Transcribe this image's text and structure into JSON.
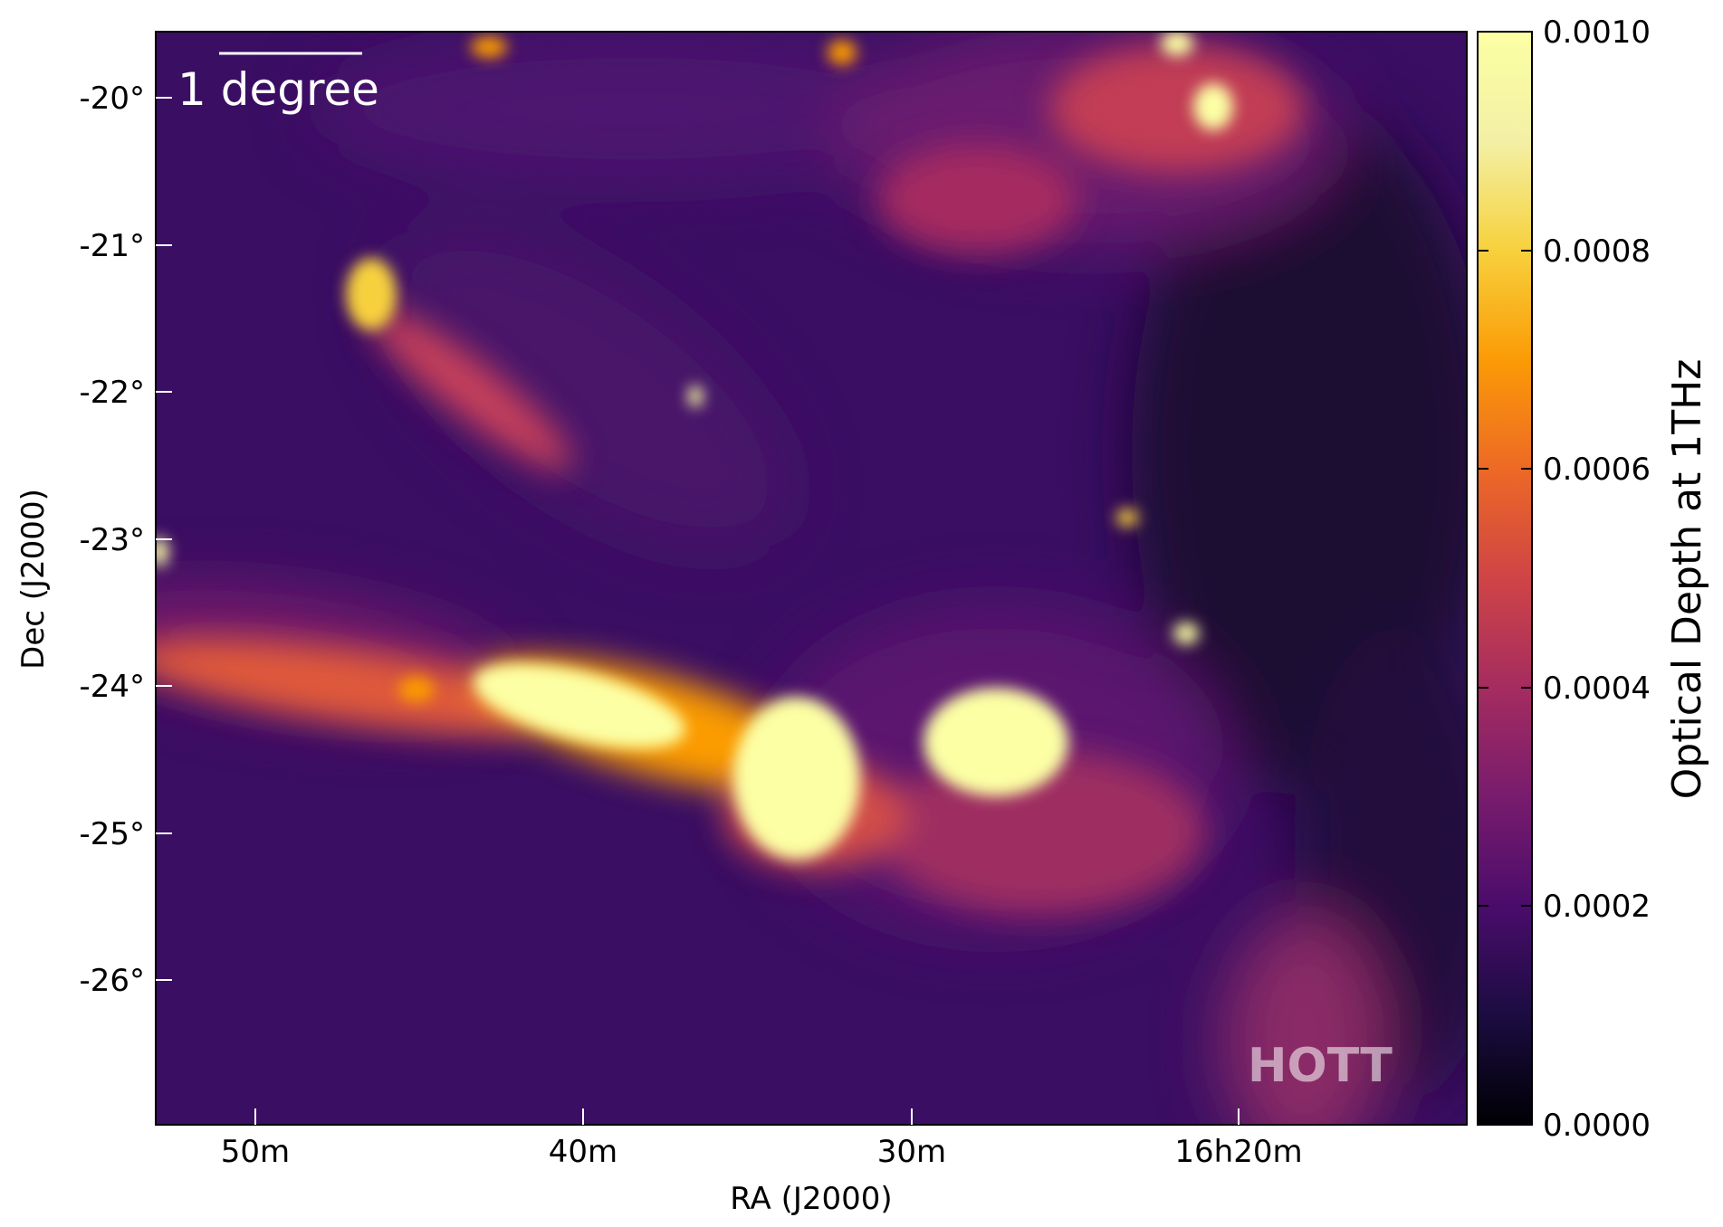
{
  "chart_data": {
    "type": "heatmap",
    "xlabel": "RA (J2000)",
    "ylabel": "Dec (J2000)",
    "x_tick_labels": [
      "50m",
      "40m",
      "30m",
      "16h20m"
    ],
    "y_tick_labels": [
      "-20°",
      "-21°",
      "-22°",
      "-23°",
      "-24°",
      "-25°",
      "-26°"
    ],
    "y_ticks_deg": [
      -20,
      -21,
      -22,
      -23,
      -24,
      -25,
      -26
    ],
    "ylim_deg": [
      -26.98,
      -19.55
    ],
    "colorbar": {
      "label": "Optical Depth at 1THz",
      "colormap": "inferno",
      "range": [
        0.0,
        0.001
      ],
      "ticks": [
        0.0,
        0.0002,
        0.0004,
        0.0006,
        0.0008,
        0.001
      ],
      "tick_labels": [
        "0.0000",
        "0.0002",
        "0.0004",
        "0.0006",
        "0.0008",
        "0.0010"
      ]
    },
    "scale_bar": {
      "label": "1 degree"
    },
    "watermark": "HOTT",
    "grid": false
  }
}
